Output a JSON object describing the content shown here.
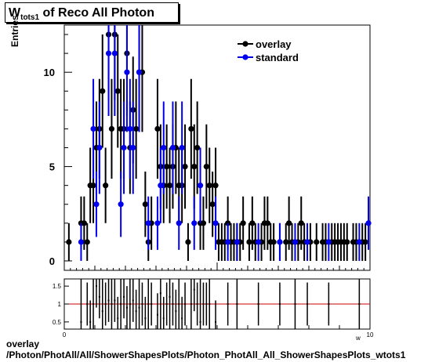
{
  "title": {
    "main": "W",
    "sub": "tots1",
    "rest": " of Reco All Photon"
  },
  "footer": {
    "line1": "overlay",
    "line2": "/Photon/PhotAll/All/ShowerShapesPlots/Photon_PhotAll_All_ShowerShapesPlots_wtots1"
  },
  "chart_data": [
    {
      "type": "scatter",
      "ylabel": "Entries",
      "xlim": [
        0,
        10
      ],
      "ylim": [
        -0.5,
        12.5
      ],
      "yticks": [
        0,
        5,
        10
      ],
      "legend_position": "top-right",
      "colors": {
        "overlay": "#000000",
        "standard": "#0000ee"
      },
      "series": [
        {
          "name": "overlay",
          "points": [
            [
              0.15,
              1
            ],
            [
              0.55,
              2
            ],
            [
              0.65,
              2
            ],
            [
              0.75,
              1
            ],
            [
              0.85,
              4
            ],
            [
              0.95,
              4
            ],
            [
              1.05,
              6
            ],
            [
              1.15,
              7
            ],
            [
              1.25,
              9
            ],
            [
              1.35,
              4
            ],
            [
              1.45,
              12
            ],
            [
              1.55,
              7
            ],
            [
              1.65,
              12
            ],
            [
              1.75,
              9
            ],
            [
              1.85,
              7
            ],
            [
              1.95,
              7
            ],
            [
              2.05,
              11
            ],
            [
              2.15,
              6
            ],
            [
              2.25,
              8
            ],
            [
              2.35,
              7
            ],
            [
              2.45,
              10
            ],
            [
              2.55,
              10
            ],
            [
              2.65,
              3
            ],
            [
              2.75,
              1
            ],
            [
              2.85,
              2
            ],
            [
              3.05,
              7
            ],
            [
              3.15,
              5
            ],
            [
              3.25,
              4
            ],
            [
              3.35,
              5
            ],
            [
              3.45,
              4
            ],
            [
              3.55,
              5
            ],
            [
              3.65,
              6
            ],
            [
              3.75,
              4
            ],
            [
              3.85,
              4
            ],
            [
              3.95,
              5
            ],
            [
              4.05,
              1
            ],
            [
              4.15,
              7
            ],
            [
              4.25,
              5
            ],
            [
              4.35,
              6
            ],
            [
              4.45,
              2
            ],
            [
              4.55,
              2
            ],
            [
              4.65,
              5
            ],
            [
              4.75,
              4
            ],
            [
              4.85,
              3
            ],
            [
              4.95,
              4
            ],
            [
              5.05,
              1
            ],
            [
              5.15,
              1
            ],
            [
              5.25,
              1
            ],
            [
              5.35,
              2
            ],
            [
              5.45,
              1
            ],
            [
              5.55,
              1
            ],
            [
              5.65,
              1
            ],
            [
              5.75,
              1
            ],
            [
              5.85,
              2
            ],
            [
              6.05,
              1
            ],
            [
              6.15,
              2
            ],
            [
              6.25,
              1
            ],
            [
              6.45,
              1
            ],
            [
              6.55,
              2
            ],
            [
              6.65,
              2
            ],
            [
              6.75,
              1
            ],
            [
              6.85,
              1
            ],
            [
              7.05,
              1
            ],
            [
              7.25,
              1
            ],
            [
              7.35,
              2
            ],
            [
              7.45,
              1
            ],
            [
              7.65,
              1
            ],
            [
              7.75,
              2
            ],
            [
              7.85,
              1
            ],
            [
              8.05,
              1
            ],
            [
              8.25,
              1
            ],
            [
              8.45,
              1
            ],
            [
              8.55,
              1
            ],
            [
              8.75,
              1
            ],
            [
              8.85,
              1
            ],
            [
              8.95,
              1
            ],
            [
              9.05,
              1
            ],
            [
              9.15,
              1
            ],
            [
              9.25,
              1
            ],
            [
              9.45,
              1
            ],
            [
              9.55,
              1
            ],
            [
              9.75,
              1
            ],
            [
              9.85,
              1
            ]
          ]
        },
        {
          "name": "standard",
          "points": [
            [
              0.55,
              1
            ],
            [
              0.95,
              7
            ],
            [
              1.05,
              3
            ],
            [
              1.15,
              6
            ],
            [
              1.45,
              11
            ],
            [
              1.65,
              11
            ],
            [
              1.85,
              3
            ],
            [
              1.95,
              6
            ],
            [
              2.05,
              10
            ],
            [
              2.15,
              7
            ],
            [
              2.25,
              6
            ],
            [
              2.45,
              10
            ],
            [
              2.75,
              2
            ],
            [
              3.05,
              2
            ],
            [
              3.15,
              4
            ],
            [
              3.25,
              6
            ],
            [
              3.55,
              6
            ],
            [
              3.75,
              2
            ],
            [
              3.85,
              6
            ],
            [
              4.25,
              2
            ],
            [
              4.45,
              4
            ],
            [
              4.95,
              2
            ],
            [
              5.35,
              1
            ],
            [
              5.65,
              1
            ],
            [
              6.35,
              1
            ],
            [
              7.05,
              1
            ],
            [
              7.55,
              1
            ],
            [
              7.95,
              1
            ],
            [
              8.65,
              1
            ],
            [
              9.65,
              1
            ],
            [
              9.95,
              2
            ]
          ]
        }
      ]
    },
    {
      "type": "scatter",
      "xlabel": "w",
      "xlim": [
        0,
        10
      ],
      "ylim": [
        0.3,
        1.7
      ],
      "yticks": [
        0.5,
        1,
        1.5
      ],
      "xticks": [
        0,
        10
      ],
      "reference_line": 1,
      "ratio_values": [
        [
          0.55,
          0.5
        ],
        [
          0.75,
          1.0
        ],
        [
          0.85,
          0.5
        ],
        [
          0.95,
          1.0
        ],
        [
          1.05,
          1.5
        ],
        [
          1.15,
          1.2
        ],
        [
          1.25,
          0.8
        ],
        [
          1.35,
          1.0
        ],
        [
          1.45,
          1.1
        ],
        [
          1.55,
          1.0
        ],
        [
          1.65,
          1.1
        ],
        [
          1.75,
          0.6
        ],
        [
          1.85,
          1.0
        ],
        [
          1.95,
          1.2
        ],
        [
          2.05,
          0.9
        ],
        [
          2.15,
          1.0
        ],
        [
          2.25,
          1.1
        ],
        [
          2.35,
          0.8
        ],
        [
          2.45,
          0.9
        ],
        [
          2.55,
          1.0
        ],
        [
          2.65,
          0.6
        ],
        [
          2.75,
          1.0
        ],
        [
          2.85,
          1.0
        ],
        [
          3.05,
          0.7
        ],
        [
          3.15,
          1.3
        ],
        [
          3.25,
          0.6
        ],
        [
          3.35,
          1.0
        ],
        [
          3.45,
          1.2
        ],
        [
          3.55,
          1.0
        ],
        [
          3.65,
          0.8
        ],
        [
          3.75,
          1.0
        ],
        [
          3.85,
          0.6
        ],
        [
          3.95,
          1.0
        ],
        [
          4.15,
          1.0
        ],
        [
          4.25,
          1.4
        ],
        [
          4.35,
          1.0
        ],
        [
          4.45,
          0.5
        ],
        [
          4.55,
          1.0
        ],
        [
          4.65,
          1.0
        ],
        [
          4.75,
          1.0
        ],
        [
          4.95,
          0.5
        ],
        [
          5.35,
          1.0
        ],
        [
          5.65,
          1.0
        ],
        [
          6.35,
          1.0
        ],
        [
          7.05,
          1.0
        ],
        [
          7.55,
          1.0
        ],
        [
          7.95,
          1.0
        ],
        [
          8.65,
          1.0
        ],
        [
          9.65,
          1.0
        ]
      ]
    }
  ]
}
